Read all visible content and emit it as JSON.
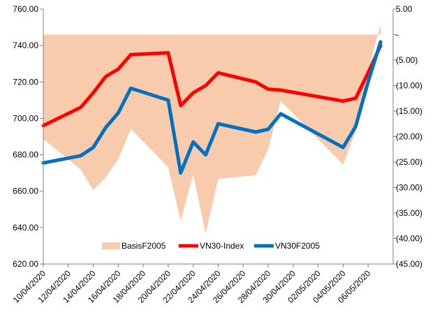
{
  "chart_data": {
    "type": "line",
    "x": [
      "10/04/2020",
      "13/04/2020",
      "14/04/2020",
      "15/04/2020",
      "16/04/2020",
      "17/04/2020",
      "20/04/2020",
      "21/04/2020",
      "22/04/2020",
      "23/04/2020",
      "24/04/2020",
      "27/04/2020",
      "28/04/2020",
      "29/04/2020",
      "04/05/2020",
      "05/05/2020",
      "06/05/2020",
      "07/05/2020"
    ],
    "x_tick_labels": [
      "10/04/2020",
      "12/04/2020",
      "14/04/2020",
      "16/04/2020",
      "18/04/2020",
      "20/04/2020",
      "22/04/2020",
      "24/04/2020",
      "26/04/2020",
      "28/04/2020",
      "30/04/2020",
      "02/05/2020",
      "04/05/2020",
      "06/05/2020"
    ],
    "x_range": [
      "10/04/2020",
      "08/05/2020"
    ],
    "y_left": {
      "range": [
        620,
        760
      ],
      "ticks": [
        620,
        640,
        660,
        680,
        700,
        720,
        740,
        760
      ],
      "tick_labels": [
        "620.00",
        "640.00",
        "660.00",
        "680.00",
        "700.00",
        "720.00",
        "740.00",
        "760.00"
      ]
    },
    "y_right": {
      "range": [
        -45,
        5
      ],
      "ticks": [
        -45,
        -40,
        -35,
        -30,
        -25,
        -20,
        -15,
        -10,
        -5,
        0,
        5
      ],
      "tick_labels": [
        "(45.00)",
        "(40.00)",
        "(35.00)",
        "(30.00)",
        "(25.00)",
        "(20.00)",
        "(15.00)",
        "(10.00)",
        "(5.00)",
        "-",
        "5.00"
      ]
    },
    "series": [
      {
        "name": "BasisF2005",
        "type": "area",
        "axis": "right",
        "color": "#F8CBAD",
        "x": [
          "10/04/2020",
          "13/04/2020",
          "14/04/2020",
          "15/04/2020",
          "16/04/2020",
          "17/04/2020",
          "20/04/2020",
          "21/04/2020",
          "22/04/2020",
          "23/04/2020",
          "24/04/2020",
          "27/04/2020",
          "28/04/2020",
          "29/04/2020",
          "04/05/2020",
          "05/05/2020",
          "06/05/2020",
          "07/05/2020"
        ],
        "values": [
          -20.5,
          -26.5,
          -30.5,
          -28.0,
          -24.5,
          -18.5,
          -26.0,
          -36.5,
          -27.5,
          -39.0,
          -28.3,
          -27.6,
          -22.5,
          -13.0,
          -25.5,
          -19.0,
          -7.0,
          2.0
        ]
      },
      {
        "name": "VN30-Index",
        "type": "line",
        "axis": "left",
        "color": "#FF0000",
        "x": [
          "10/04/2020",
          "13/04/2020",
          "14/04/2020",
          "15/04/2020",
          "16/04/2020",
          "17/04/2020",
          "20/04/2020",
          "21/04/2020",
          "22/04/2020",
          "23/04/2020",
          "24/04/2020",
          "27/04/2020",
          "28/04/2020",
          "29/04/2020",
          "04/05/2020",
          "05/05/2020",
          "06/05/2020",
          "07/05/2020"
        ],
        "values": [
          696.0,
          706.0,
          714.0,
          723.0,
          727.0,
          735.0,
          736.0,
          707.0,
          714.0,
          718.0,
          725.0,
          720.0,
          716.0,
          715.5,
          709.5,
          711.0,
          725.0,
          740.0
        ]
      },
      {
        "name": "VN30F2005",
        "type": "line",
        "axis": "left",
        "color": "#0070C0",
        "x": [
          "10/04/2020",
          "13/04/2020",
          "14/04/2020",
          "15/04/2020",
          "16/04/2020",
          "17/04/2020",
          "20/04/2020",
          "21/04/2020",
          "22/04/2020",
          "23/04/2020",
          "24/04/2020",
          "27/04/2020",
          "28/04/2020",
          "29/04/2020",
          "04/05/2020",
          "05/05/2020",
          "06/05/2020",
          "07/05/2020"
        ],
        "values": [
          675.5,
          679.5,
          684.0,
          695.0,
          703.0,
          716.5,
          710.0,
          670.0,
          687.0,
          680.0,
          697.0,
          692.5,
          694.0,
          702.5,
          684.0,
          695.5,
          720.0,
          742.0
        ]
      }
    ],
    "legend": {
      "placement": "bottom-inside"
    },
    "grid": false
  }
}
